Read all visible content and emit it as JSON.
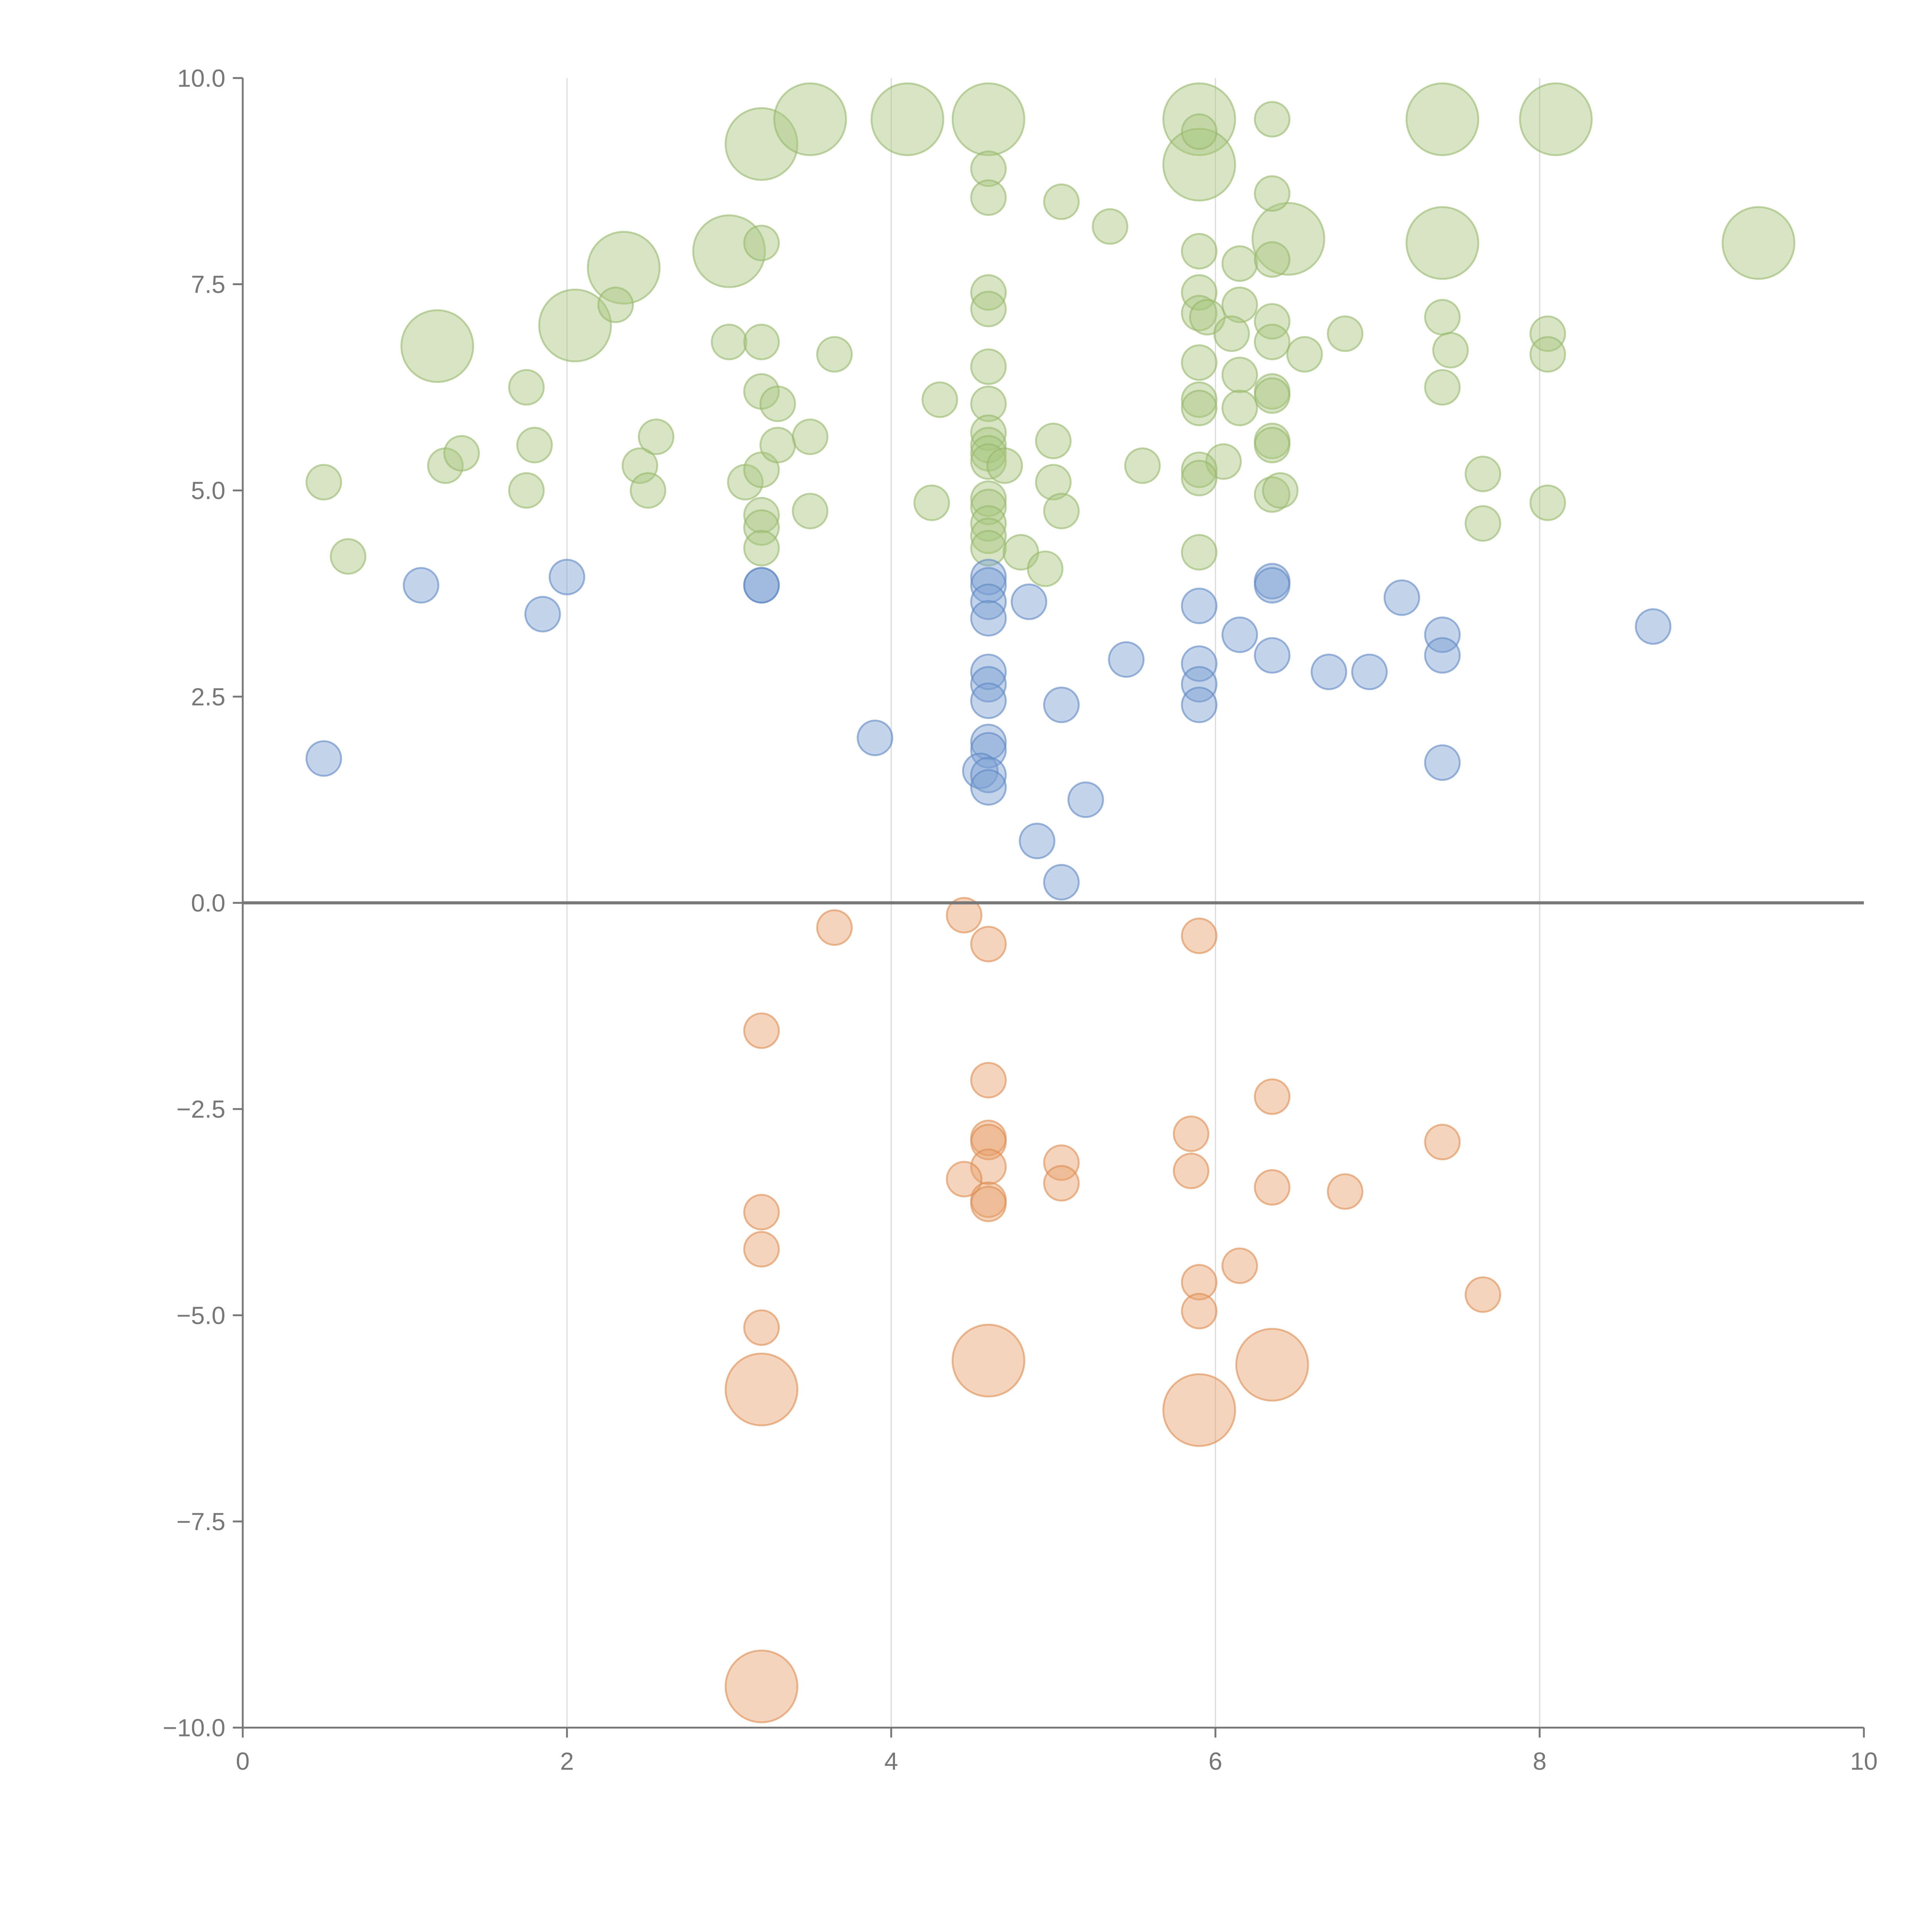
{
  "chart_data": {
    "type": "scatter",
    "title": "",
    "xlabel": "",
    "ylabel": "",
    "xlim": [
      0,
      10
    ],
    "ylim": [
      -10,
      10
    ],
    "xticks": [
      "0",
      "2",
      "4",
      "6",
      "8",
      "10"
    ],
    "yticks": [
      "10.0",
      "7.5",
      "5.0",
      "2.5",
      "0.0",
      "−2.5",
      "−5.0",
      "−7.5",
      "−10.0"
    ],
    "xtick_values": [
      0,
      2,
      4,
      6,
      8,
      10
    ],
    "ytick_values": [
      10,
      7.5,
      5,
      2.5,
      0,
      -2.5,
      -5,
      -7.5,
      -10
    ],
    "grid": "vertical",
    "size_note": "point format [x, y, size] where size 1 = small, 2 = large",
    "series": [
      {
        "name": "green",
        "color": "#a9c67f",
        "stroke": "#98b86a",
        "points": [
          [
            3.2,
            9.2,
            2
          ],
          [
            3.5,
            9.5,
            2
          ],
          [
            4.1,
            9.5,
            2
          ],
          [
            4.6,
            9.5,
            2
          ],
          [
            5.9,
            9.5,
            2
          ],
          [
            5.9,
            8.95,
            2
          ],
          [
            7.4,
            9.5,
            2
          ],
          [
            8.1,
            9.5,
            2
          ],
          [
            6.45,
            8.05,
            2
          ],
          [
            7.4,
            8.0,
            2
          ],
          [
            9.35,
            8.0,
            2
          ],
          [
            3.0,
            7.9,
            2
          ],
          [
            2.35,
            7.7,
            2
          ],
          [
            2.05,
            7.0,
            2
          ],
          [
            1.2,
            6.75,
            2
          ],
          [
            5.9,
            9.35,
            1
          ],
          [
            6.35,
            9.5,
            1
          ],
          [
            4.6,
            8.9,
            1
          ],
          [
            4.6,
            8.55,
            1
          ],
          [
            5.05,
            8.5,
            1
          ],
          [
            5.35,
            8.2,
            1
          ],
          [
            3.2,
            8.0,
            1
          ],
          [
            6.35,
            8.6,
            1
          ],
          [
            5.9,
            7.9,
            1
          ],
          [
            6.15,
            7.75,
            1
          ],
          [
            6.35,
            7.8,
            1
          ],
          [
            4.6,
            7.4,
            1
          ],
          [
            4.6,
            7.2,
            1
          ],
          [
            2.3,
            7.25,
            1
          ],
          [
            5.9,
            7.4,
            1
          ],
          [
            5.9,
            7.15,
            1
          ],
          [
            5.95,
            7.1,
            1
          ],
          [
            6.15,
            7.25,
            1
          ],
          [
            6.1,
            6.9,
            1
          ],
          [
            6.35,
            7.05,
            1
          ],
          [
            6.35,
            6.8,
            1
          ],
          [
            6.8,
            6.9,
            1
          ],
          [
            6.55,
            6.65,
            1
          ],
          [
            7.4,
            7.1,
            1
          ],
          [
            7.45,
            6.7,
            1
          ],
          [
            7.4,
            6.25,
            1
          ],
          [
            8.05,
            6.9,
            1
          ],
          [
            8.05,
            6.65,
            1
          ],
          [
            3.0,
            6.8,
            1
          ],
          [
            3.2,
            6.8,
            1
          ],
          [
            3.65,
            6.65,
            1
          ],
          [
            1.75,
            6.25,
            1
          ],
          [
            3.2,
            6.2,
            1
          ],
          [
            3.3,
            6.05,
            1
          ],
          [
            4.3,
            6.1,
            1
          ],
          [
            4.6,
            6.5,
            1
          ],
          [
            4.6,
            6.05,
            1
          ],
          [
            5.9,
            6.55,
            1
          ],
          [
            6.15,
            6.4,
            1
          ],
          [
            5.9,
            6.1,
            1
          ],
          [
            5.9,
            6.0,
            1
          ],
          [
            6.15,
            6.0,
            1
          ],
          [
            6.35,
            6.2,
            1
          ],
          [
            6.35,
            6.15,
            1
          ],
          [
            4.6,
            5.7,
            1
          ],
          [
            4.6,
            5.55,
            1
          ],
          [
            4.6,
            5.45,
            1
          ],
          [
            4.6,
            5.35,
            1
          ],
          [
            4.7,
            5.3,
            1
          ],
          [
            5.0,
            5.6,
            1
          ],
          [
            5.55,
            5.3,
            1
          ],
          [
            6.05,
            5.35,
            1
          ],
          [
            5.9,
            5.25,
            1
          ],
          [
            5.9,
            5.15,
            1
          ],
          [
            6.35,
            5.6,
            1
          ],
          [
            6.35,
            5.55,
            1
          ],
          [
            0.5,
            5.1,
            1
          ],
          [
            0.65,
            4.2,
            1
          ],
          [
            1.25,
            5.3,
            1
          ],
          [
            1.35,
            5.45,
            1
          ],
          [
            1.8,
            5.55,
            1
          ],
          [
            1.75,
            5.0,
            1
          ],
          [
            2.45,
            5.3,
            1
          ],
          [
            2.5,
            5.0,
            1
          ],
          [
            2.55,
            5.65,
            1
          ],
          [
            3.1,
            5.1,
            1
          ],
          [
            3.2,
            5.25,
            1
          ],
          [
            3.3,
            5.55,
            1
          ],
          [
            3.5,
            5.65,
            1
          ],
          [
            3.2,
            4.7,
            1
          ],
          [
            3.2,
            4.55,
            1
          ],
          [
            3.2,
            4.3,
            1
          ],
          [
            3.5,
            4.75,
            1
          ],
          [
            4.25,
            4.85,
            1
          ],
          [
            4.6,
            4.9,
            1
          ],
          [
            4.6,
            4.8,
            1
          ],
          [
            4.6,
            4.6,
            1
          ],
          [
            4.6,
            4.45,
            1
          ],
          [
            4.6,
            4.3,
            1
          ],
          [
            4.8,
            4.25,
            1
          ],
          [
            5.0,
            5.1,
            1
          ],
          [
            5.05,
            4.75,
            1
          ],
          [
            4.95,
            4.05,
            1
          ],
          [
            5.9,
            4.25,
            1
          ],
          [
            6.35,
            4.95,
            1
          ],
          [
            6.4,
            5.0,
            1
          ],
          [
            7.65,
            5.2,
            1
          ],
          [
            7.65,
            4.6,
            1
          ],
          [
            8.05,
            4.85,
            1
          ]
        ]
      },
      {
        "name": "blue",
        "color": "#7a9fd2",
        "stroke": "#5f87c3",
        "points": [
          [
            0.5,
            1.75,
            1
          ],
          [
            1.1,
            3.85,
            1
          ],
          [
            1.85,
            3.5,
            1
          ],
          [
            2.0,
            3.95,
            1
          ],
          [
            3.2,
            3.85,
            1
          ],
          [
            3.2,
            3.85,
            1
          ],
          [
            3.9,
            2.0,
            1
          ],
          [
            4.6,
            3.95,
            1
          ],
          [
            4.6,
            3.85,
            1
          ],
          [
            4.6,
            3.65,
            1
          ],
          [
            4.6,
            3.45,
            1
          ],
          [
            4.6,
            2.8,
            1
          ],
          [
            4.6,
            2.65,
            1
          ],
          [
            4.6,
            2.45,
            1
          ],
          [
            4.6,
            1.95,
            1
          ],
          [
            4.6,
            1.85,
            1
          ],
          [
            4.55,
            1.6,
            1
          ],
          [
            4.6,
            1.55,
            1
          ],
          [
            4.6,
            1.4,
            1
          ],
          [
            4.85,
            3.65,
            1
          ],
          [
            4.9,
            0.75,
            1
          ],
          [
            5.05,
            2.4,
            1
          ],
          [
            5.05,
            0.25,
            1
          ],
          [
            5.2,
            1.25,
            1
          ],
          [
            5.45,
            2.95,
            1
          ],
          [
            5.9,
            3.6,
            1
          ],
          [
            5.9,
            2.9,
            1
          ],
          [
            5.9,
            2.65,
            1
          ],
          [
            5.9,
            2.4,
            1
          ],
          [
            6.15,
            3.25,
            1
          ],
          [
            6.35,
            3.9,
            1
          ],
          [
            6.35,
            3.85,
            1
          ],
          [
            6.35,
            3.0,
            1
          ],
          [
            6.7,
            2.8,
            1
          ],
          [
            6.95,
            2.8,
            1
          ],
          [
            7.15,
            3.7,
            1
          ],
          [
            7.4,
            3.25,
            1
          ],
          [
            7.4,
            3.0,
            1
          ],
          [
            7.4,
            1.7,
            1
          ],
          [
            8.7,
            3.35,
            1
          ]
        ]
      },
      {
        "name": "orange",
        "color": "#e6a06a",
        "stroke": "#dd8c50",
        "points": [
          [
            3.65,
            -0.3,
            1
          ],
          [
            4.45,
            -0.15,
            1
          ],
          [
            4.6,
            -0.5,
            1
          ],
          [
            5.9,
            -0.4,
            1
          ],
          [
            3.2,
            -1.55,
            1
          ],
          [
            4.6,
            -2.15,
            1
          ],
          [
            6.35,
            -2.35,
            1
          ],
          [
            5.85,
            -2.8,
            1
          ],
          [
            4.6,
            -2.85,
            1
          ],
          [
            4.6,
            -2.9,
            1
          ],
          [
            5.05,
            -3.15,
            1
          ],
          [
            4.6,
            -3.2,
            1
          ],
          [
            4.45,
            -3.35,
            1
          ],
          [
            5.05,
            -3.4,
            1
          ],
          [
            5.85,
            -3.25,
            1
          ],
          [
            7.4,
            -2.9,
            1
          ],
          [
            6.35,
            -3.45,
            1
          ],
          [
            6.8,
            -3.5,
            1
          ],
          [
            4.6,
            -3.6,
            1
          ],
          [
            4.6,
            -3.65,
            1
          ],
          [
            3.2,
            -3.75,
            1
          ],
          [
            3.2,
            -4.2,
            1
          ],
          [
            6.15,
            -4.4,
            1
          ],
          [
            5.9,
            -4.6,
            1
          ],
          [
            5.9,
            -4.95,
            1
          ],
          [
            7.65,
            -4.75,
            1
          ],
          [
            3.2,
            -5.15,
            1
          ],
          [
            4.6,
            -5.55,
            2
          ],
          [
            6.35,
            -5.6,
            2
          ],
          [
            3.2,
            -5.9,
            2
          ],
          [
            5.9,
            -6.15,
            2
          ],
          [
            3.2,
            -9.5,
            2
          ]
        ]
      }
    ]
  }
}
